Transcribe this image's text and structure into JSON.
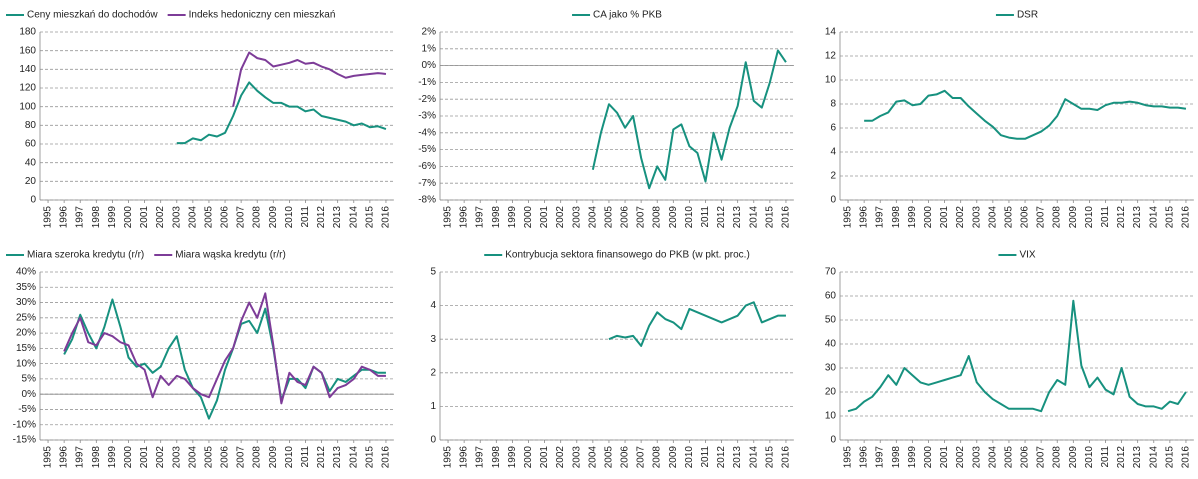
{
  "chart_data": [
    {
      "type": "line",
      "legend": "top-left",
      "grid": true,
      "x": [
        2003,
        2003.5,
        2004,
        2004.5,
        2005,
        2005.5,
        2006,
        2006.5,
        2007,
        2007.5,
        2008,
        2008.5,
        2009,
        2009.5,
        2010,
        2010.5,
        2011,
        2011.5,
        2012,
        2012.5,
        2013,
        2013.5,
        2014,
        2014.5,
        2015,
        2015.5,
        2016
      ],
      "series": [
        {
          "name": "Ceny mieszkań do dochodów",
          "color": "#17917f",
          "values": [
            61,
            61,
            66,
            64,
            70,
            68,
            72,
            90,
            112,
            126,
            117,
            110,
            104,
            104,
            100,
            100,
            95,
            97,
            90,
            88,
            86,
            84,
            80,
            82,
            78,
            79,
            76
          ]
        },
        {
          "name": "Indeks hedoniczny cen mieszkań",
          "color": "#7d3c98",
          "values": [
            null,
            null,
            null,
            null,
            null,
            null,
            null,
            100,
            140,
            158,
            152,
            150,
            143,
            145,
            147,
            150,
            146,
            147,
            143,
            140,
            135,
            131,
            133,
            134,
            135,
            136,
            135
          ]
        }
      ],
      "xlim": [
        1994.5,
        2016.5
      ],
      "xticks": [
        1995,
        1996,
        1997,
        1998,
        1999,
        2000,
        2001,
        2002,
        2003,
        2004,
        2005,
        2006,
        2007,
        2008,
        2009,
        2010,
        2011,
        2012,
        2013,
        2014,
        2015,
        2016
      ],
      "ylim": [
        0,
        180
      ],
      "yticks": [
        0,
        20,
        40,
        60,
        80,
        100,
        120,
        140,
        160,
        180
      ]
    },
    {
      "type": "line",
      "legend": "top-center",
      "grid": true,
      "x": [
        2004,
        2004.5,
        2005,
        2005.5,
        2006,
        2006.5,
        2007,
        2007.5,
        2008,
        2008.5,
        2009,
        2009.5,
        2010,
        2010.5,
        2011,
        2011.5,
        2012,
        2012.5,
        2013,
        2013.5,
        2014,
        2014.5,
        2015,
        2015.5,
        2016
      ],
      "series": [
        {
          "name": "CA jako % PKB",
          "color": "#17917f",
          "values": [
            -6.2,
            -4,
            -2.3,
            -2.8,
            -3.7,
            -3,
            -5.5,
            -7.3,
            -6,
            -6.8,
            -3.8,
            -3.5,
            -4.8,
            -5.2,
            -6.9,
            -4,
            -5.6,
            -3.7,
            -2.4,
            0.2,
            -2.1,
            -2.5,
            -1,
            0.9,
            0.2
          ]
        }
      ],
      "xlim": [
        1994.5,
        2016.5
      ],
      "xticks": [
        1995,
        1996,
        1997,
        1998,
        1999,
        2000,
        2001,
        2002,
        2003,
        2004,
        2005,
        2006,
        2007,
        2008,
        2009,
        2010,
        2011,
        2012,
        2013,
        2014,
        2015,
        2016
      ],
      "ylim": [
        -8,
        2
      ],
      "yticks": [
        {
          "value": -8,
          "label": "-8%"
        },
        {
          "value": -7,
          "label": "-7%"
        },
        {
          "value": -6,
          "label": "-6%"
        },
        {
          "value": -5,
          "label": "-5%"
        },
        {
          "value": -4,
          "label": "-4%"
        },
        {
          "value": -3,
          "label": "-3%"
        },
        {
          "value": -2,
          "label": "-2%"
        },
        {
          "value": -1,
          "label": "-1%"
        },
        {
          "value": 0,
          "label": "0%"
        },
        {
          "value": 1,
          "label": "1%"
        },
        {
          "value": 2,
          "label": "2%"
        }
      ]
    },
    {
      "type": "line",
      "legend": "top-center",
      "grid": true,
      "x": [
        1996,
        1996.5,
        1997,
        1997.5,
        1998,
        1998.5,
        1999,
        1999.5,
        2000,
        2000.5,
        2001,
        2001.5,
        2002,
        2002.5,
        2003,
        2003.5,
        2004,
        2004.5,
        2005,
        2005.5,
        2006,
        2006.5,
        2007,
        2007.5,
        2008,
        2008.5,
        2009,
        2009.5,
        2010,
        2010.5,
        2011,
        2011.5,
        2012,
        2012.5,
        2013,
        2013.5,
        2014,
        2014.5,
        2015,
        2015.5,
        2016
      ],
      "series": [
        {
          "name": "DSR",
          "color": "#17917f",
          "values": [
            6.6,
            6.6,
            7,
            7.3,
            8.2,
            8.3,
            7.9,
            8,
            8.7,
            8.8,
            9.1,
            8.5,
            8.5,
            7.8,
            7.2,
            6.6,
            6.1,
            5.4,
            5.2,
            5.1,
            5.1,
            5.4,
            5.7,
            6.2,
            7,
            8.4,
            8,
            7.6,
            7.6,
            7.5,
            7.9,
            8.1,
            8.1,
            8.2,
            8.1,
            7.9,
            7.8,
            7.8,
            7.7,
            7.7,
            7.6
          ]
        }
      ],
      "xlim": [
        1994.5,
        2016.5
      ],
      "xticks": [
        1995,
        1996,
        1997,
        1998,
        1999,
        2000,
        2001,
        2002,
        2003,
        2004,
        2005,
        2006,
        2007,
        2008,
        2009,
        2010,
        2011,
        2012,
        2013,
        2014,
        2015,
        2016
      ],
      "ylim": [
        0,
        14
      ],
      "yticks": [
        0,
        2,
        4,
        6,
        8,
        10,
        12,
        14
      ]
    },
    {
      "type": "line",
      "legend": "top-left",
      "grid": true,
      "x": [
        1996,
        1996.5,
        1997,
        1997.5,
        1998,
        1998.5,
        1999,
        1999.5,
        2000,
        2000.5,
        2001,
        2001.5,
        2002,
        2002.5,
        2003,
        2003.5,
        2004,
        2004.5,
        2005,
        2005.5,
        2006,
        2006.5,
        2007,
        2007.5,
        2008,
        2008.5,
        2009,
        2009.5,
        2010,
        2010.5,
        2011,
        2011.5,
        2012,
        2012.5,
        2013,
        2013.5,
        2014,
        2014.5,
        2015,
        2015.5,
        2016
      ],
      "series": [
        {
          "name": "Miara szeroka kredytu (r/r)",
          "color": "#17917f",
          "values": [
            13,
            18,
            26,
            20,
            15,
            22,
            31,
            22,
            12,
            9,
            10,
            7,
            9,
            15,
            19,
            8,
            2,
            -1,
            -8,
            -2,
            8,
            15,
            23,
            24,
            20,
            28,
            15,
            -2,
            5,
            5,
            2,
            9,
            7,
            1,
            5,
            4,
            6,
            8,
            8,
            7,
            7
          ]
        },
        {
          "name": "Miara wąska kredytu (r/r)",
          "color": "#7d3c98",
          "values": [
            14,
            20,
            25,
            17,
            16,
            20,
            19,
            17,
            16,
            10,
            8,
            -1,
            6,
            3,
            6,
            5,
            2,
            0,
            -1,
            5,
            11,
            15,
            24,
            30,
            25,
            33,
            16,
            -3,
            7,
            4,
            3,
            9,
            7,
            -1,
            2,
            3,
            5,
            9,
            8,
            6,
            6
          ]
        }
      ],
      "xlim": [
        1994.5,
        2016.5
      ],
      "xticks": [
        1995,
        1996,
        1997,
        1998,
        1999,
        2000,
        2001,
        2002,
        2003,
        2004,
        2005,
        2006,
        2007,
        2008,
        2009,
        2010,
        2011,
        2012,
        2013,
        2014,
        2015,
        2016
      ],
      "ylim": [
        -15,
        40
      ],
      "yticks": [
        {
          "value": -15,
          "label": "-15%"
        },
        {
          "value": -10,
          "label": "-10%"
        },
        {
          "value": -5,
          "label": "-5%"
        },
        {
          "value": 0,
          "label": "0%"
        },
        {
          "value": 5,
          "label": "5%"
        },
        {
          "value": 10,
          "label": "10%"
        },
        {
          "value": 15,
          "label": "15%"
        },
        {
          "value": 20,
          "label": "20%"
        },
        {
          "value": 25,
          "label": "25%"
        },
        {
          "value": 30,
          "label": "30%"
        },
        {
          "value": 35,
          "label": "35%"
        },
        {
          "value": 40,
          "label": "40%"
        }
      ]
    },
    {
      "type": "line",
      "legend": "top-center",
      "grid": true,
      "x": [
        2005,
        2005.5,
        2006,
        2006.5,
        2007,
        2007.5,
        2008,
        2008.5,
        2009,
        2009.5,
        2010,
        2010.5,
        2011,
        2011.5,
        2012,
        2012.5,
        2013,
        2013.5,
        2014,
        2014.5,
        2015,
        2015.5,
        2016
      ],
      "series": [
        {
          "name": "Kontrybucja sektora finansowego do PKB (w pkt. proc.)",
          "color": "#17917f",
          "values": [
            3,
            3.1,
            3.05,
            3.1,
            2.8,
            3.4,
            3.8,
            3.6,
            3.5,
            3.3,
            3.9,
            3.8,
            3.7,
            3.6,
            3.5,
            3.6,
            3.7,
            4,
            4.1,
            3.5,
            3.6,
            3.7,
            3.7
          ]
        }
      ],
      "xlim": [
        1994.5,
        2016.5
      ],
      "xticks": [
        1995,
        1996,
        1997,
        1998,
        1999,
        2000,
        2001,
        2002,
        2003,
        2004,
        2005,
        2006,
        2007,
        2008,
        2009,
        2010,
        2011,
        2012,
        2013,
        2014,
        2015,
        2016
      ],
      "ylim": [
        0,
        5
      ],
      "yticks": [
        0,
        1,
        2,
        3,
        4,
        5
      ]
    },
    {
      "type": "line",
      "legend": "top-center",
      "grid": true,
      "x": [
        1995,
        1995.5,
        1996,
        1996.5,
        1997,
        1997.5,
        1998,
        1998.5,
        1999,
        1999.5,
        2000,
        2000.5,
        2001,
        2001.5,
        2002,
        2002.5,
        2003,
        2003.5,
        2004,
        2004.5,
        2005,
        2005.5,
        2006,
        2006.5,
        2007,
        2007.5,
        2008,
        2008.5,
        2009,
        2009.5,
        2010,
        2010.5,
        2011,
        2011.5,
        2012,
        2012.5,
        2013,
        2013.5,
        2014,
        2014.5,
        2015,
        2015.5,
        2016
      ],
      "series": [
        {
          "name": "VIX",
          "color": "#17917f",
          "values": [
            12,
            13,
            16,
            18,
            22,
            27,
            23,
            30,
            27,
            24,
            23,
            24,
            25,
            26,
            27,
            35,
            24,
            20,
            17,
            15,
            13,
            13,
            13,
            13,
            12,
            20,
            25,
            23,
            58,
            31,
            22,
            26,
            21,
            19,
            30,
            18,
            15,
            14,
            14,
            13,
            16,
            15,
            20
          ]
        }
      ],
      "xlim": [
        1994.5,
        2016.5
      ],
      "xticks": [
        1995,
        1996,
        1997,
        1998,
        1999,
        2000,
        2001,
        2002,
        2003,
        2004,
        2005,
        2006,
        2007,
        2008,
        2009,
        2010,
        2011,
        2012,
        2013,
        2014,
        2015,
        2016
      ],
      "ylim": [
        0,
        70
      ],
      "yticks": [
        0,
        10,
        20,
        30,
        40,
        50,
        60,
        70
      ]
    }
  ]
}
